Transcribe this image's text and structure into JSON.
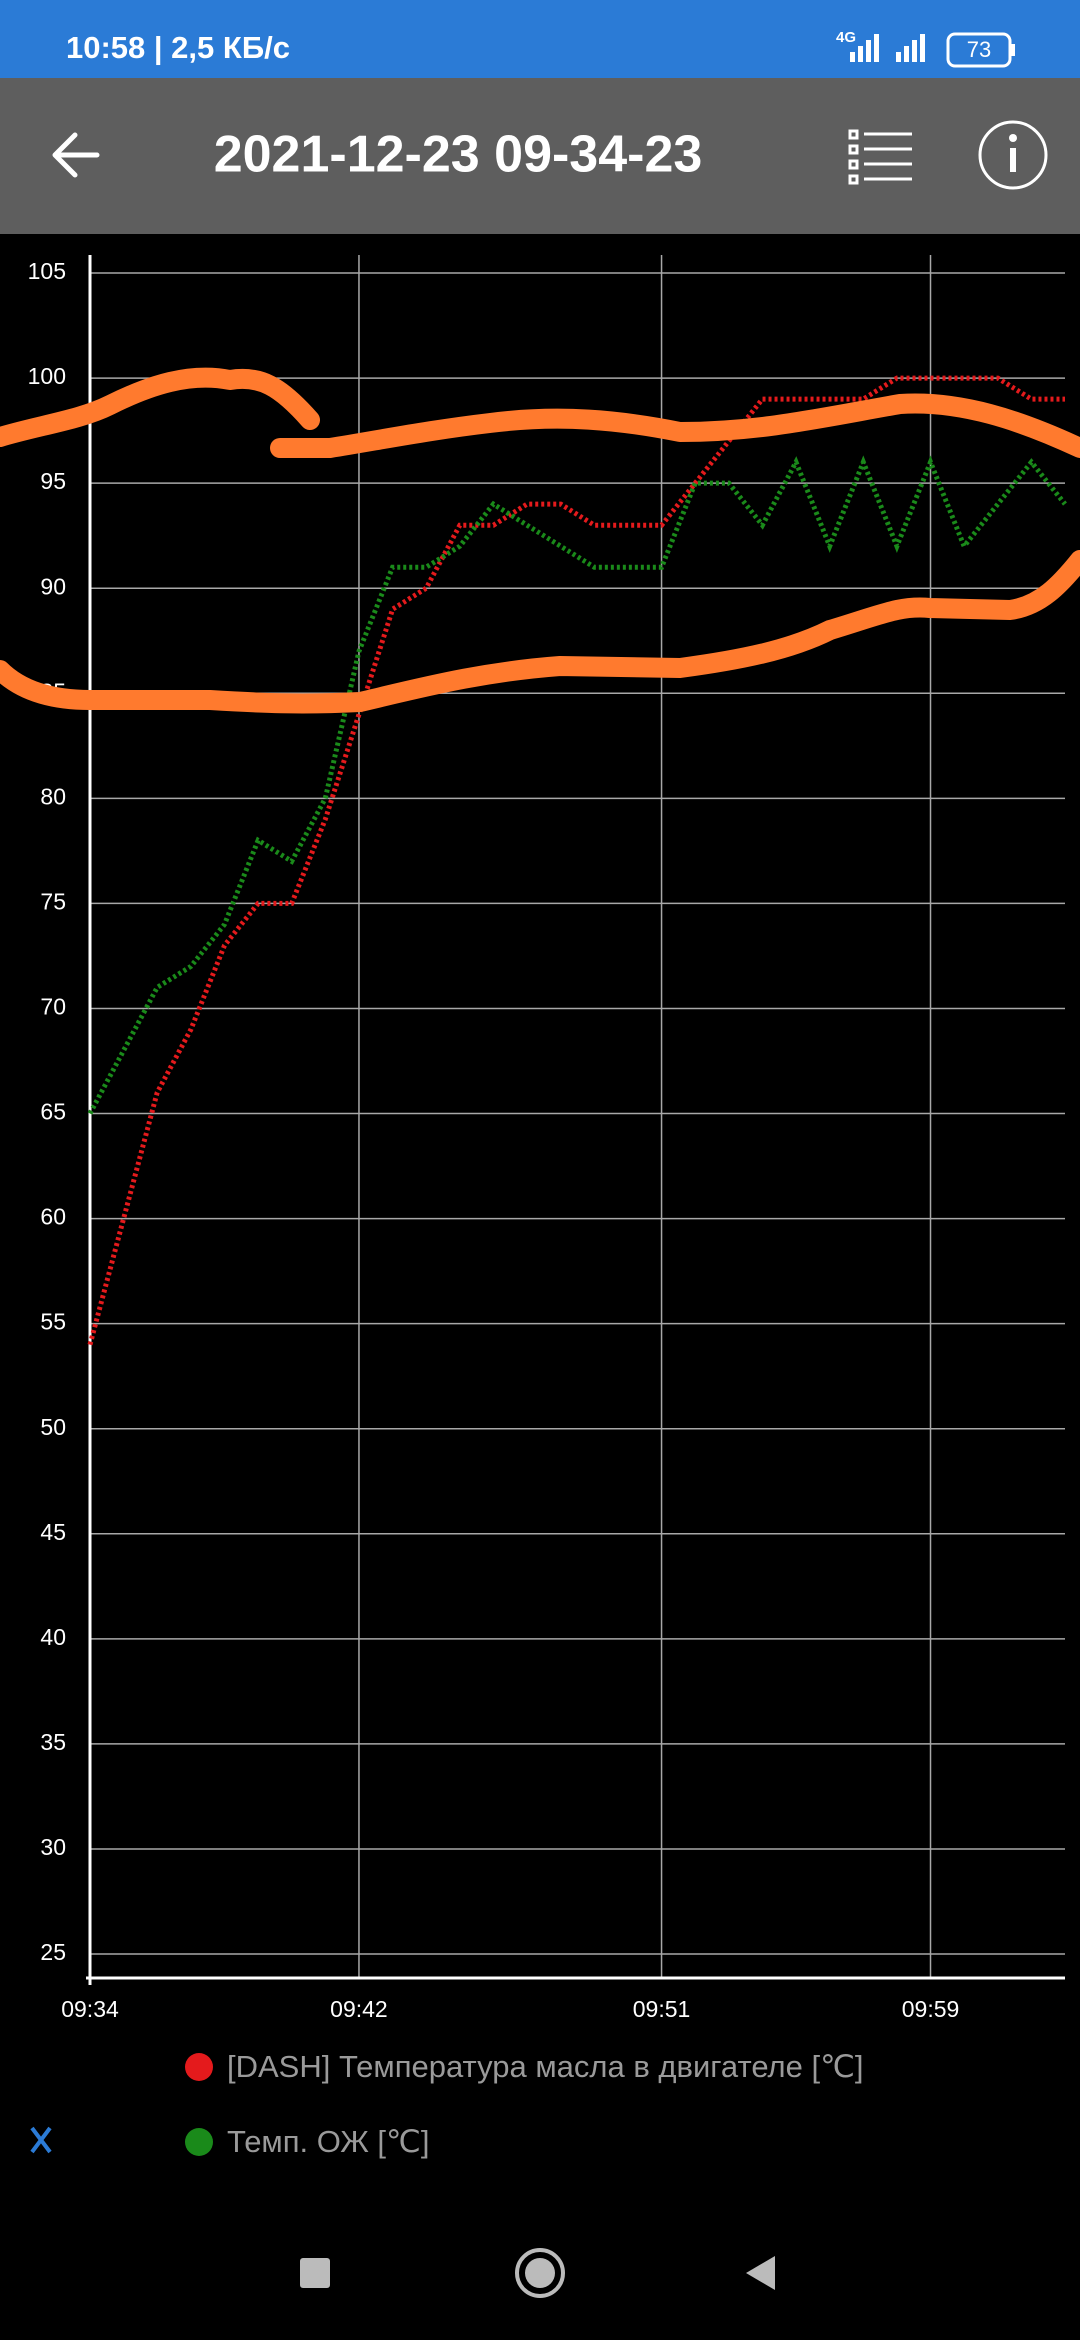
{
  "status_bar": {
    "time": "10:58 | 2,5 КБ/с",
    "network": "4G",
    "battery": "73"
  },
  "app_bar": {
    "title": "2021-12-23 09-34-23"
  },
  "chart_data": {
    "type": "line",
    "x": [
      "09:34",
      "09:35",
      "09:36",
      "09:37",
      "09:38",
      "09:39",
      "09:40",
      "09:41",
      "09:42",
      "09:43",
      "09:44",
      "09:45",
      "09:46",
      "09:47",
      "09:48",
      "09:49",
      "09:50",
      "09:51",
      "09:52",
      "09:53",
      "09:54",
      "09:55",
      "09:56",
      "09:57",
      "09:58",
      "09:59",
      "10:00",
      "10:01",
      "10:02",
      "10:03"
    ],
    "series": [
      {
        "name": "[DASH] Температура масла в двигателе [℃]",
        "color": "#e41a1c",
        "values": [
          54,
          60,
          66,
          69,
          73,
          75,
          75,
          79,
          84,
          89,
          90,
          93,
          93,
          94,
          94,
          93,
          93,
          93,
          95,
          97,
          99,
          99,
          99,
          99,
          100,
          100,
          100,
          100,
          99,
          99
        ]
      },
      {
        "name": "Темп. ОЖ [℃]",
        "color": "#1a8a1a",
        "values": [
          65,
          68,
          71,
          72,
          74,
          78,
          77,
          80,
          87,
          91,
          91,
          92,
          94,
          93,
          92,
          91,
          91,
          91,
          95,
          95,
          93,
          96,
          92,
          96,
          92,
          96,
          92,
          94,
          96,
          94
        ]
      }
    ],
    "xlim": [
      "09:34",
      "10:03"
    ],
    "xticks": [
      "09:34",
      "09:42",
      "09:51",
      "09:59"
    ],
    "ylim": [
      25,
      105
    ],
    "yticks": [
      25,
      30,
      35,
      40,
      45,
      50,
      55,
      60,
      65,
      70,
      75,
      80,
      85,
      90,
      95,
      100,
      105
    ],
    "grid": true
  }
}
